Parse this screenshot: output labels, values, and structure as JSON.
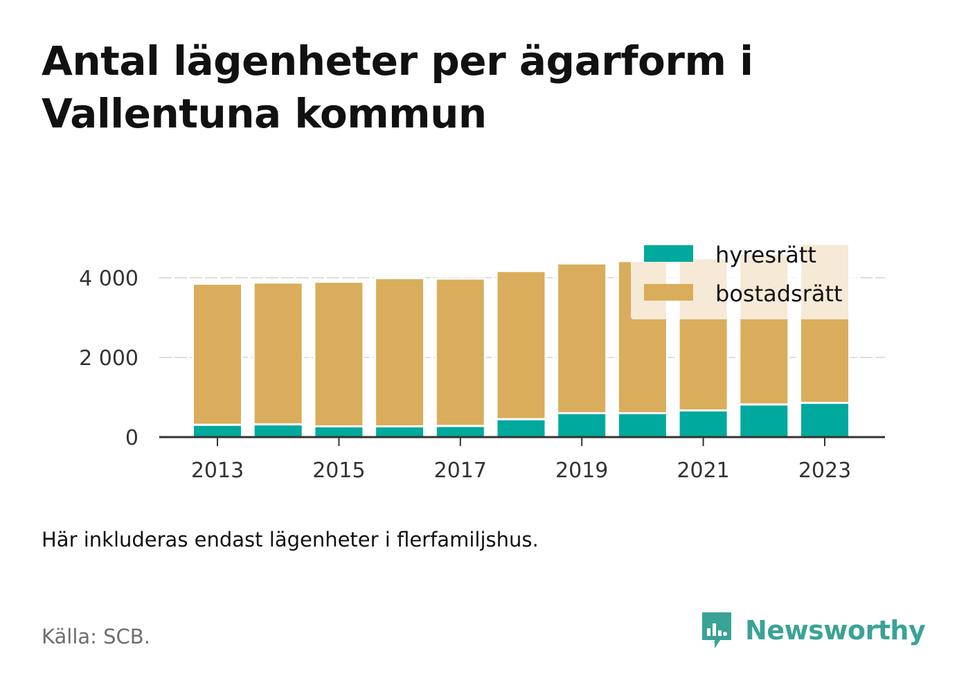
{
  "title": "Antal lägenheter per ägarform i Vallentuna kommun",
  "note": "Här inkluderas endast lägenheter i flerfamiljshus.",
  "source": "Källa: SCB.",
  "brand": {
    "name": "Newsworthy",
    "logo_icon": "bar-chart-speech-bubble-icon"
  },
  "colors": {
    "hyresratt": "#00a99d",
    "bostadsratt": "#d9ad5b",
    "grid": "#dedede",
    "axis": "#333333",
    "brand": "#3aa396"
  },
  "chart_data": {
    "type": "bar",
    "stacked": true,
    "categories": [
      "2013",
      "2014",
      "2015",
      "2016",
      "2017",
      "2018",
      "2019",
      "2020",
      "2021",
      "2022",
      "2023"
    ],
    "x_tick_labels": [
      "2013",
      "2015",
      "2017",
      "2019",
      "2021",
      "2023"
    ],
    "series": [
      {
        "name": "hyresrätt",
        "color": "#00a99d",
        "values": [
          310,
          320,
          270,
          270,
          280,
          450,
          600,
          600,
          670,
          820,
          860
        ]
      },
      {
        "name": "bostadsrätt",
        "color": "#d9ad5b",
        "values": [
          3540,
          3560,
          3630,
          3720,
          3700,
          3720,
          3760,
          3820,
          3820,
          3780,
          3990
        ]
      }
    ],
    "y_ticks": [
      0,
      2000,
      4000
    ],
    "y_tick_labels": [
      "0",
      "2 000",
      "4 000"
    ],
    "ylim": [
      0,
      4000
    ],
    "grid": true,
    "legend_position": "top-right",
    "xlabel": "",
    "ylabel": ""
  }
}
